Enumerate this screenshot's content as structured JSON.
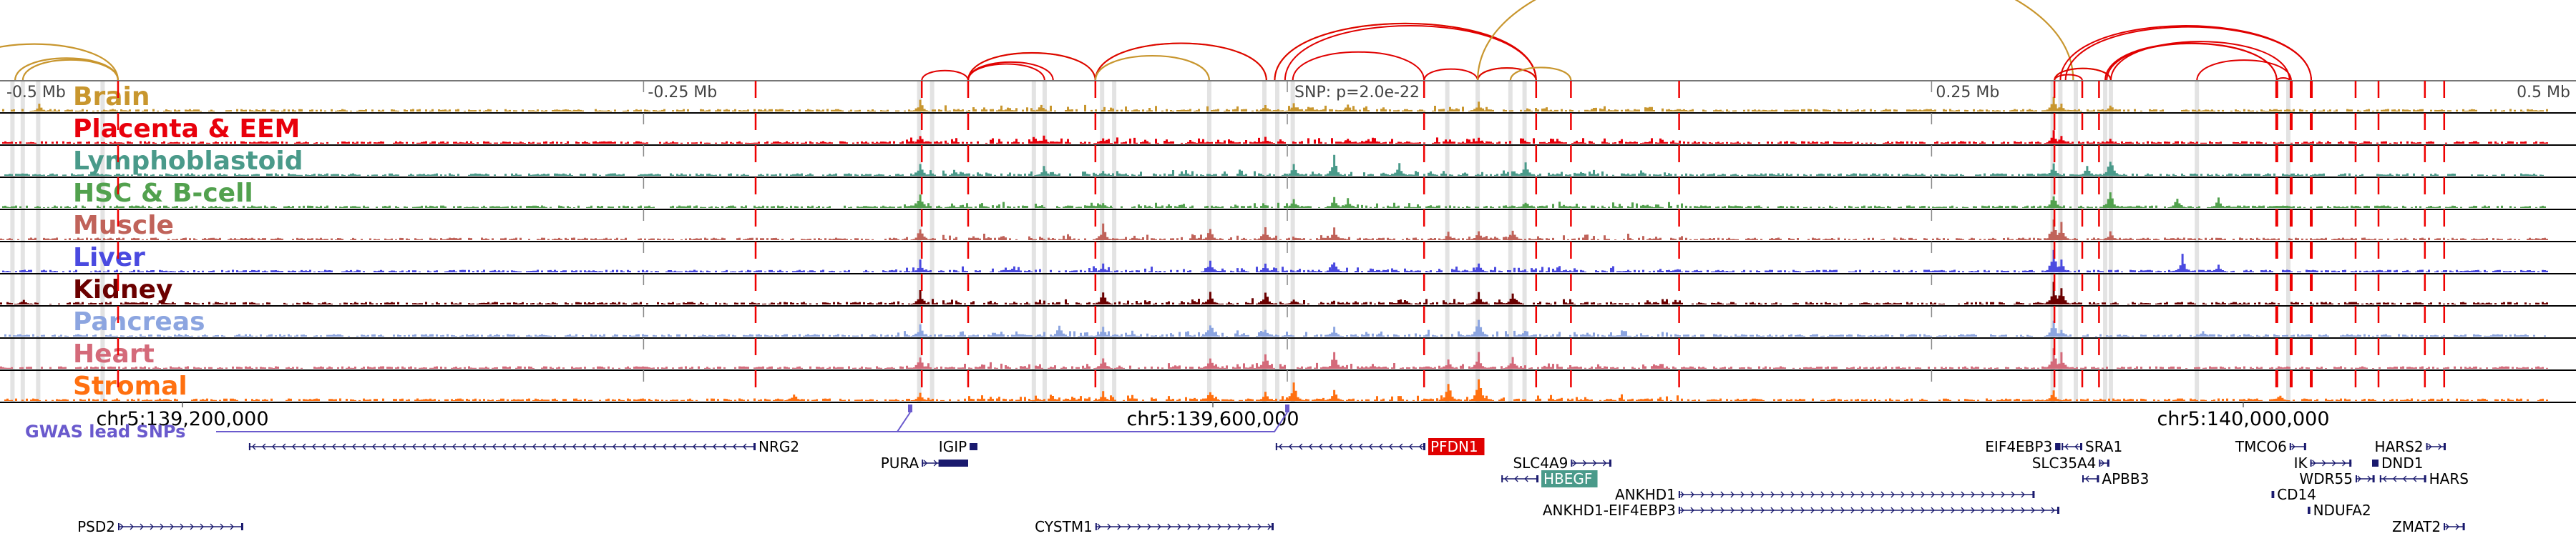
{
  "ruler": {
    "labels": [
      {
        "text": "-0.5 Mb",
        "kb": -70
      },
      {
        "text": "-0.25 Mb",
        "kb": 179
      },
      {
        "text": "0.25 Mb",
        "kb": 679
      },
      {
        "text": "0.5 Mb",
        "kb": 929
      }
    ],
    "snp_label": "SNP: p=2.0e-22",
    "snp_kb": 428.9
  },
  "coordinates": [
    {
      "text": "chr5:139,200,000",
      "kb": 0
    },
    {
      "text": "chr5:139,600,000",
      "kb": 400
    },
    {
      "text": "chr5:140,000,000",
      "kb": 800
    }
  ],
  "gwas": {
    "label": "GWAS lead SNPs",
    "color": "#6a5acd",
    "snps_kb": [
      282.5,
      428.9
    ]
  },
  "tracks": [
    {
      "name": "Brain",
      "color": "#c8962e",
      "peaks": [
        [
          286,
          0.45
        ],
        [
          333,
          0.3
        ],
        [
          420,
          0.35
        ],
        [
          431,
          0.3
        ],
        [
          452,
          0.3
        ],
        [
          502.8,
          0.45
        ],
        [
          726,
          0.6
        ],
        [
          729,
          0.35
        ],
        [
          748,
          0.3
        ],
        [
          -56,
          0.3
        ]
      ]
    },
    {
      "name": "Placenta & EEM",
      "color": "#e8000b",
      "peaks": [
        [
          286,
          0.35
        ],
        [
          334,
          0.3
        ],
        [
          357,
          0.25
        ],
        [
          420,
          0.25
        ],
        [
          452,
          0.25
        ],
        [
          502.8,
          0.25
        ],
        [
          726,
          0.55
        ],
        [
          729,
          0.35
        ],
        [
          748,
          0.2
        ],
        [
          1000,
          0.2
        ]
      ]
    },
    {
      "name": "Lymphoblastoid",
      "color": "#4a9a8a",
      "peaks": [
        [
          286,
          0.55
        ],
        [
          334,
          0.35
        ],
        [
          357,
          0.2
        ],
        [
          431,
          0.45
        ],
        [
          446.7,
          0.75
        ],
        [
          472,
          0.45
        ],
        [
          521,
          0.5
        ],
        [
          726,
          0.5
        ],
        [
          748,
          0.75
        ],
        [
          739,
          0.4
        ]
      ]
    },
    {
      "name": "HSC & B-cell",
      "color": "#52a14e",
      "peaks": [
        [
          286,
          0.6
        ],
        [
          357,
          0.2
        ],
        [
          431,
          0.45
        ],
        [
          446.7,
          0.4
        ],
        [
          452,
          0.35
        ],
        [
          521,
          0.3
        ],
        [
          726,
          0.55
        ],
        [
          748,
          0.8
        ],
        [
          774,
          0.45
        ],
        [
          790,
          0.4
        ]
      ]
    },
    {
      "name": "Muscle",
      "color": "#c0635a",
      "peaks": [
        [
          286,
          0.5
        ],
        [
          357,
          0.6
        ],
        [
          398.6,
          0.55
        ],
        [
          420,
          0.6
        ],
        [
          446.7,
          0.45
        ],
        [
          491,
          0.3
        ],
        [
          502.8,
          0.45
        ],
        [
          516,
          0.5
        ],
        [
          726,
          0.9
        ],
        [
          729,
          0.7
        ],
        [
          748,
          0.35
        ]
      ]
    },
    {
      "name": "Liver",
      "color": "#4a4ae0",
      "peaks": [
        [
          286,
          0.45
        ],
        [
          357,
          0.35
        ],
        [
          398.6,
          0.5
        ],
        [
          420,
          0.35
        ],
        [
          446.7,
          0.55
        ],
        [
          502.8,
          0.35
        ],
        [
          726,
          0.95
        ],
        [
          729,
          0.45
        ],
        [
          776,
          0.75
        ],
        [
          790,
          0.35
        ]
      ]
    },
    {
      "name": "Kidney",
      "color": "#6b0000",
      "peaks": [
        [
          286,
          0.55
        ],
        [
          357,
          0.5
        ],
        [
          398.6,
          0.5
        ],
        [
          420,
          0.55
        ],
        [
          431,
          0.25
        ],
        [
          502.8,
          0.5
        ],
        [
          516,
          0.6
        ],
        [
          726,
          0.95
        ],
        [
          729,
          0.65
        ],
        [
          -62,
          0.2
        ]
      ]
    },
    {
      "name": "Pancreas",
      "color": "#8ca5e0",
      "peaks": [
        [
          286,
          0.45
        ],
        [
          340,
          0.45
        ],
        [
          357,
          0.35
        ],
        [
          398.6,
          0.65
        ],
        [
          420,
          0.35
        ],
        [
          446.7,
          0.4
        ],
        [
          502.8,
          0.95
        ],
        [
          726,
          0.6
        ],
        [
          729,
          0.35
        ],
        [
          784,
          0.3
        ]
      ]
    },
    {
      "name": "Heart",
      "color": "#d46a7a",
      "peaks": [
        [
          286,
          0.55
        ],
        [
          357,
          0.45
        ],
        [
          398.6,
          0.55
        ],
        [
          420,
          0.65
        ],
        [
          446.7,
          0.65
        ],
        [
          491,
          0.4
        ],
        [
          502.8,
          0.6
        ],
        [
          516,
          0.5
        ],
        [
          726,
          0.85
        ],
        [
          729,
          0.6
        ]
      ]
    },
    {
      "name": "Stromal",
      "color": "#ff7010",
      "peaks": [
        [
          237,
          0.35
        ],
        [
          286,
          0.3
        ],
        [
          357,
          0.35
        ],
        [
          398.6,
          0.5
        ],
        [
          420,
          0.35
        ],
        [
          431,
          0.85
        ],
        [
          446.7,
          0.5
        ],
        [
          491,
          0.8
        ],
        [
          502.8,
          0.95
        ],
        [
          726,
          0.45
        ],
        [
          814,
          0.3
        ]
      ]
    }
  ],
  "highlight_bands_kb": [
    -66,
    -62,
    -56,
    -31,
    286,
    291,
    330.5,
    334.7,
    357,
    361.7,
    398.6,
    420,
    425,
    431,
    491,
    502.8,
    515.5,
    521,
    726,
    729,
    735,
    746.4,
    748.6,
    782,
    817.5
  ],
  "red_lines_kb": [
    -25,
    222.5,
    287,
    305,
    354.4,
    482,
    525.5,
    539,
    581,
    726.7,
    737.5,
    744,
    813,
    818.6,
    826.4,
    843.6,
    852.5,
    870.5,
    878
  ],
  "loops": [
    {
      "from": -90,
      "to": -25,
      "tissue": "brain"
    },
    {
      "from": -65,
      "to": -25,
      "tissue": "brain"
    },
    {
      "from": -62,
      "to": -25,
      "tissue": "brain"
    },
    {
      "from": 287,
      "to": 305,
      "tissue": "placenta"
    },
    {
      "from": 305,
      "to": 354.4,
      "tissue": "brain"
    },
    {
      "from": 305,
      "to": 354.4,
      "tissue": "placenta"
    },
    {
      "from": 305,
      "to": 334.7,
      "tissue": "placenta"
    },
    {
      "from": 305,
      "to": 338,
      "tissue": "placenta"
    },
    {
      "from": 354.4,
      "to": 420.8,
      "tissue": "brain"
    },
    {
      "from": 354.4,
      "to": 420.8,
      "tissue": "placenta"
    },
    {
      "from": 354.4,
      "to": 398.6,
      "tissue": "brain"
    },
    {
      "from": 424,
      "to": 525.5,
      "tissue": "brain"
    },
    {
      "from": 424,
      "to": 525.5,
      "tissue": "placenta"
    },
    {
      "from": 428,
      "to": 525.5,
      "tissue": "placenta"
    },
    {
      "from": 431,
      "to": 482,
      "tissue": "placenta"
    },
    {
      "from": 482,
      "to": 502.8,
      "tissue": "placenta"
    },
    {
      "from": 502.8,
      "to": 525.5,
      "tissue": "brain"
    },
    {
      "from": 502.8,
      "to": 525.5,
      "tissue": "placenta"
    },
    {
      "from": 515.5,
      "to": 539,
      "tissue": "brain"
    },
    {
      "from": 502.8,
      "to": 734,
      "tissue": "brain"
    },
    {
      "from": 726.7,
      "to": 737.5,
      "tissue": "placenta"
    },
    {
      "from": 726.7,
      "to": 748.6,
      "tissue": "brain"
    },
    {
      "from": 726.7,
      "to": 748.6,
      "tissue": "placenta"
    },
    {
      "from": 729,
      "to": 826.4,
      "tissue": "placenta"
    },
    {
      "from": 731,
      "to": 826.4,
      "tissue": "placenta"
    },
    {
      "from": 746.4,
      "to": 813,
      "tissue": "placenta"
    },
    {
      "from": 747,
      "to": 813,
      "tissue": "placenta"
    },
    {
      "from": 748.6,
      "to": 818,
      "tissue": "placenta"
    },
    {
      "from": 782,
      "to": 818.6,
      "tissue": "placenta"
    },
    {
      "from": 813,
      "to": 818,
      "tissue": "placenta"
    }
  ],
  "loop_colors": {
    "brain": "#c8962e",
    "placenta": "#e00000"
  },
  "genes": [
    {
      "name": "NRG2",
      "start": 25.8,
      "end": 222.5,
      "strand": "-",
      "row": 1,
      "label_side": "right"
    },
    {
      "name": "PSD2",
      "start": -25,
      "end": 23.6,
      "strand": "+",
      "row": 6,
      "label_side": "left"
    },
    {
      "name": "IGIP",
      "start": 305.6,
      "end": 308.6,
      "strand": "+",
      "row": 1,
      "label_side": "left"
    },
    {
      "name": "PURA",
      "start": 287,
      "end": 305,
      "strand": "+",
      "row": 2,
      "label_side": "left",
      "thick_from": 293.5
    },
    {
      "name": "CYSTM1",
      "start": 354.4,
      "end": 423.6,
      "strand": "+",
      "row": 6,
      "label_side": "left"
    },
    {
      "name": "PFDN1",
      "start": 424.4,
      "end": 482.5,
      "strand": "-",
      "row": 1,
      "label_side": "right",
      "highlight": "#e00000"
    },
    {
      "name": "SLC4A9",
      "start": 539,
      "end": 554.7,
      "strand": "+",
      "row": 2,
      "label_side": "left"
    },
    {
      "name": "HBEGF",
      "start": 512,
      "end": 526.4,
      "strand": "-",
      "row": 3,
      "label_side": "right",
      "highlight": "#4a9a8a"
    },
    {
      "name": "ANKHD1",
      "start": 580.8,
      "end": 719,
      "strand": "+",
      "row": 4,
      "label_side": "left"
    },
    {
      "name": "ANKHD1-EIF4EBP3",
      "start": 580.8,
      "end": 728.6,
      "strand": "+",
      "row": 5,
      "label_side": "left"
    },
    {
      "name": "EIF4EBP3",
      "start": 727,
      "end": 729,
      "strand": "+",
      "row": 1,
      "label_side": "left"
    },
    {
      "name": "SRA1",
      "start": 729.5,
      "end": 737.5,
      "strand": "-",
      "row": 1,
      "label_side": "right"
    },
    {
      "name": "SLC35A4",
      "start": 744,
      "end": 748,
      "strand": "+",
      "row": 2,
      "label_side": "left"
    },
    {
      "name": "APBB3",
      "start": 737.5,
      "end": 744,
      "strand": "-",
      "row": 3,
      "label_side": "right"
    },
    {
      "name": "TMCO6",
      "start": 818,
      "end": 824.4,
      "strand": "+",
      "row": 1,
      "label_side": "left"
    },
    {
      "name": "IK",
      "start": 826,
      "end": 842,
      "strand": "+",
      "row": 2,
      "label_side": "left"
    },
    {
      "name": "WDR55",
      "start": 843.6,
      "end": 851,
      "strand": "+",
      "row": 3,
      "label_side": "left"
    },
    {
      "name": "HARS",
      "start": 853,
      "end": 871,
      "strand": "-",
      "row": 3,
      "label_side": "right"
    },
    {
      "name": "HARS2",
      "start": 871,
      "end": 878.6,
      "strand": "+",
      "row": 1,
      "label_side": "left"
    },
    {
      "name": "DND1",
      "start": 850,
      "end": 852.5,
      "strand": "-",
      "row": 2,
      "label_side": "right"
    },
    {
      "name": "CD14",
      "start": 811,
      "end": 812,
      "strand": "-",
      "row": 4,
      "label_side": "right"
    },
    {
      "name": "NDUFA2",
      "start": 825,
      "end": 826,
      "strand": "-",
      "row": 5,
      "label_side": "right"
    },
    {
      "name": "ZMAT2",
      "start": 877.8,
      "end": 886,
      "strand": "+",
      "row": 6,
      "label_side": "left"
    }
  ]
}
